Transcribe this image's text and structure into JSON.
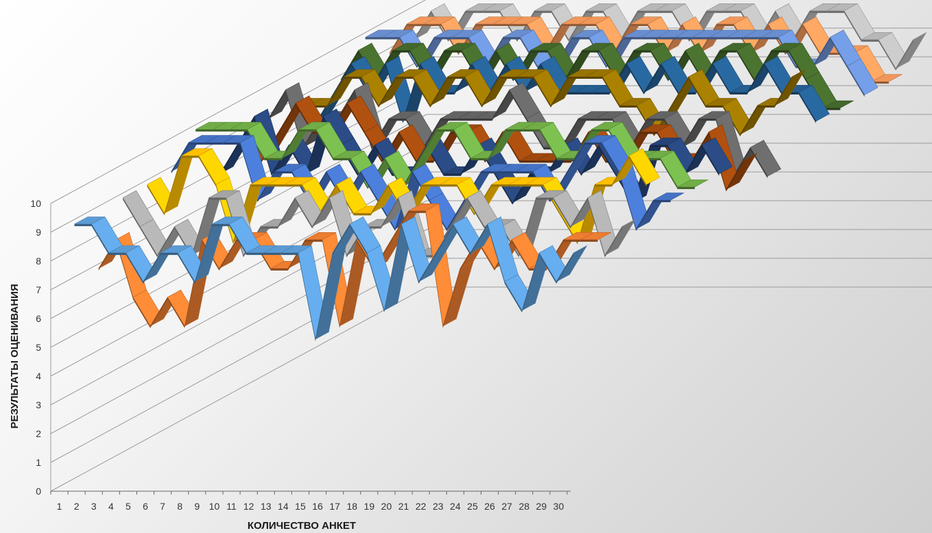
{
  "chart_data": {
    "type": "line",
    "style": "3d-ribbon",
    "title": "",
    "xlabel": "КОЛИЧЕСТВО АНКЕТ",
    "ylabel": "РЕЗУЛЬТАТЫ ОЦЕНИВАНИЯ",
    "ylim": [
      0,
      10
    ],
    "y_ticks": [
      "0",
      "1",
      "2",
      "3",
      "4",
      "5",
      "6",
      "7",
      "8",
      "9",
      "10"
    ],
    "categories": [
      "1",
      "2",
      "3",
      "4",
      "5",
      "6",
      "7",
      "8",
      "9",
      "10",
      "11",
      "12",
      "13",
      "14",
      "15",
      "16",
      "17",
      "18",
      "19",
      "20",
      "21",
      "22",
      "23",
      "24",
      "25",
      "26",
      "27",
      "28",
      "29",
      "30"
    ],
    "grid": true,
    "legend": "none",
    "series": [
      {
        "color": "#5b9bd5",
        "values": [
          9,
          9,
          8,
          8,
          7,
          8,
          8,
          7,
          9,
          9,
          8,
          8,
          8,
          8,
          5,
          8,
          9,
          8,
          6,
          9,
          7,
          8,
          9,
          8,
          9,
          7,
          6,
          8,
          7,
          8
        ]
      },
      {
        "color": "#ed7d31",
        "values": [
          7,
          8,
          6,
          5,
          6,
          5,
          8,
          7,
          8,
          8,
          7,
          7,
          8,
          8,
          5,
          8,
          7,
          8,
          9,
          9,
          5,
          7,
          8,
          7,
          8,
          7,
          7,
          8,
          8,
          8
        ]
      },
      {
        "color": "#a5a5a5",
        "values": [
          9,
          8,
          7,
          8,
          7,
          9,
          9,
          7,
          8,
          8,
          9,
          8,
          9,
          7,
          8,
          8,
          9,
          7,
          7,
          8,
          9,
          8,
          8,
          7,
          9,
          9,
          8,
          9,
          7,
          8
        ]
      },
      {
        "color": "#ffc000",
        "values": [
          9,
          8,
          10,
          10,
          9,
          7,
          9,
          9,
          9,
          9,
          8,
          9,
          8,
          8,
          9,
          8,
          9,
          9,
          9,
          8,
          9,
          9,
          9,
          9,
          8,
          7,
          9,
          9,
          10,
          9
        ]
      },
      {
        "color": "#4472c4",
        "values": [
          9,
          10,
          10,
          10,
          10,
          8,
          9,
          9,
          8,
          9,
          8,
          9,
          8,
          7,
          9,
          8,
          7,
          8,
          9,
          9,
          9,
          9,
          8,
          9,
          10,
          10,
          9,
          7,
          8,
          8
        ]
      },
      {
        "color": "#70ad47",
        "values": [
          10,
          10,
          10,
          10,
          9,
          9,
          10,
          10,
          9,
          9,
          8,
          9,
          8,
          9,
          10,
          10,
          9,
          9,
          10,
          10,
          10,
          9,
          9,
          10,
          10,
          9,
          9,
          9,
          8,
          8
        ]
      },
      {
        "color": "#264478",
        "values": [
          8,
          9,
          10,
          8,
          9,
          8,
          10,
          9,
          8,
          9,
          8,
          8,
          9,
          8,
          8,
          9,
          8,
          7,
          8,
          8,
          9,
          8,
          9,
          8,
          7,
          9,
          9,
          8,
          9,
          8
        ]
      },
      {
        "color": "#9e480e",
        "values": [
          9,
          8,
          9,
          10,
          9,
          9,
          10,
          9,
          8,
          9,
          8,
          8,
          9,
          9,
          8,
          9,
          8,
          8,
          8,
          8,
          9,
          8,
          8,
          9,
          9,
          8,
          8,
          9,
          7,
          8
        ]
      },
      {
        "color": "#636363",
        "values": [
          9,
          10,
          8,
          9,
          9,
          10,
          8,
          9,
          9,
          8,
          9,
          9,
          9,
          9,
          10,
          9,
          8,
          8,
          9,
          9,
          9,
          8,
          9,
          9,
          8,
          9,
          9,
          7,
          8,
          7
        ]
      },
      {
        "color": "#997300",
        "values": [
          9,
          9,
          9,
          10,
          10,
          9,
          10,
          10,
          9,
          10,
          10,
          9,
          10,
          10,
          10,
          9,
          10,
          10,
          10,
          9,
          9,
          8,
          9,
          10,
          9,
          9,
          8,
          9,
          9,
          10
        ]
      },
      {
        "color": "#255e91",
        "values": [
          8,
          9,
          10,
          9,
          10,
          8,
          10,
          9,
          9,
          10,
          9,
          10,
          9,
          10,
          9,
          9,
          9,
          9,
          10,
          9,
          10,
          9,
          9,
          10,
          9,
          9,
          10,
          9,
          9,
          8
        ]
      },
      {
        "color": "#43682b",
        "values": [
          9,
          10,
          9,
          10,
          10,
          9,
          10,
          10,
          9,
          10,
          9,
          10,
          10,
          9,
          10,
          10,
          9,
          10,
          10,
          9,
          10,
          9,
          10,
          10,
          9,
          10,
          10,
          9,
          8,
          8
        ]
      },
      {
        "color": "#698ed0",
        "values": [
          10,
          10,
          10,
          9,
          10,
          10,
          10,
          9,
          10,
          10,
          9,
          9,
          10,
          10,
          9,
          10,
          10,
          10,
          10,
          10,
          10,
          10,
          10,
          10,
          10,
          9,
          9,
          10,
          9,
          8
        ]
      },
      {
        "color": "#f1975a",
        "values": [
          9,
          10,
          10,
          10,
          9,
          10,
          10,
          10,
          10,
          9,
          10,
          10,
          10,
          9,
          10,
          10,
          9,
          10,
          9,
          10,
          10,
          9,
          10,
          9,
          10,
          9,
          9,
          9,
          8,
          8
        ]
      },
      {
        "color": "#b7b7b7",
        "values": [
          9,
          10,
          9,
          10,
          10,
          10,
          9,
          10,
          10,
          9,
          10,
          10,
          9,
          10,
          10,
          10,
          9,
          10,
          10,
          10,
          9,
          10,
          9,
          10,
          10,
          10,
          9,
          9,
          8,
          9
        ]
      }
    ]
  }
}
